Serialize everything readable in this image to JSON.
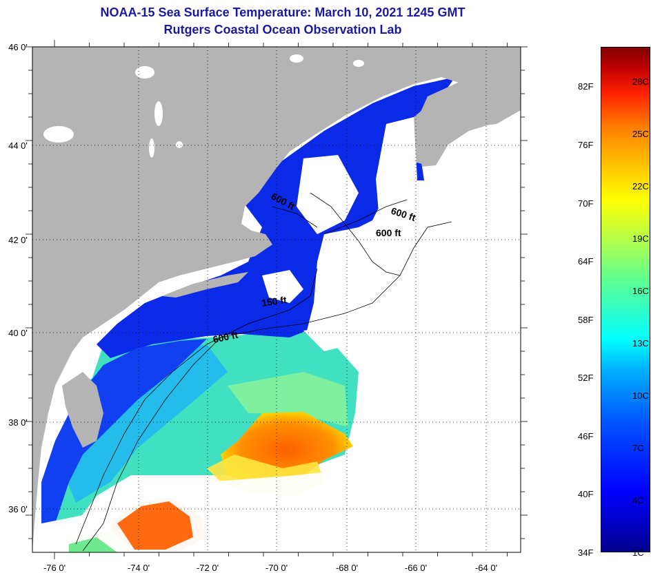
{
  "title": {
    "line1": "NOAA-15 Sea Surface Temperature:  March 10, 2021 1245 GMT",
    "line2": "Rutgers Coastal Ocean Observation Lab"
  },
  "map": {
    "lon_ticks": [
      "-76 0'",
      "-74 0'",
      "-72 0'",
      "-70 0'",
      "-68 0'",
      "-66 0'",
      "-64 0'"
    ],
    "lat_ticks": [
      "46 0'",
      "44 0'",
      "42 0'",
      "40 0'",
      "38 0'",
      "36 0'"
    ],
    "isobath_labels": [
      "600 ft",
      "600 ft",
      "600 ft",
      "150 ft",
      "600 ft"
    ],
    "colors": {
      "land": "#b4b4b4",
      "cloud": "#ffffff",
      "cold": "#0a1ee6",
      "mid": "#33c8ff",
      "warm": "#ff7a00"
    }
  },
  "colorbar": {
    "fahrenheit": [
      "82F",
      "76F",
      "70F",
      "64F",
      "58F",
      "52F",
      "46F",
      "40F",
      "34F"
    ],
    "celsius": [
      "28C",
      "25C",
      "22C",
      "19C",
      "16C",
      "13C",
      "10C",
      "7C",
      "4C",
      "1C"
    ]
  }
}
